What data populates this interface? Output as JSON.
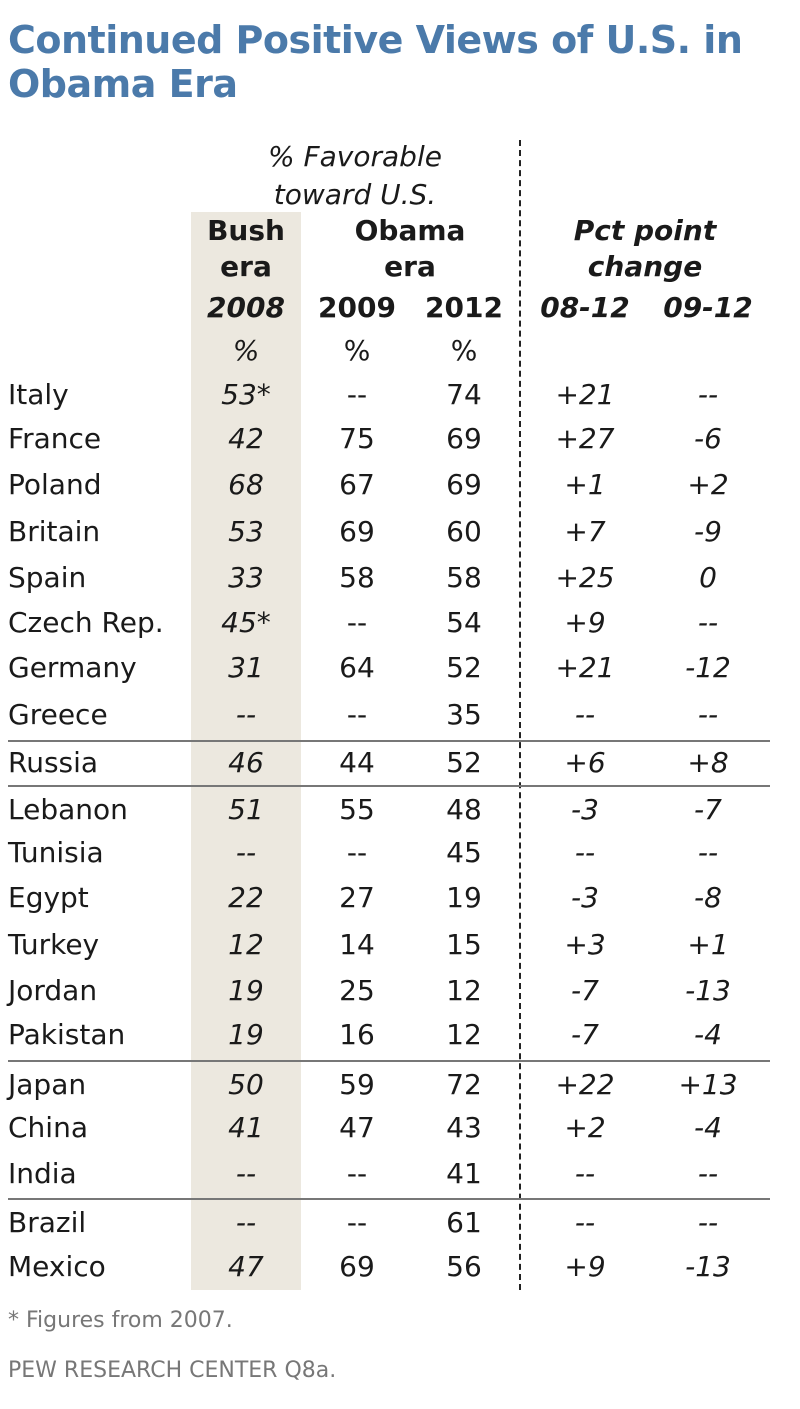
{
  "chart_data": {
    "type": "table",
    "title": "Continued Positive Views of U.S. in Obama Era",
    "header": {
      "group_label": "% Favorable toward U.S.",
      "bush_era": "Bush era",
      "obama_era": "Obama era",
      "pct_change": "Pct point change",
      "columns": [
        "2008",
        "2009",
        "2012",
        "08-12",
        "09-12"
      ],
      "units": [
        "%",
        "%",
        "%"
      ]
    },
    "rows": [
      {
        "country": "Italy",
        "values": [
          "53*",
          "--",
          "74",
          "+21",
          "--"
        ]
      },
      {
        "country": "France",
        "values": [
          "42",
          "75",
          "69",
          "+27",
          "-6"
        ]
      },
      {
        "country": "Poland",
        "values": [
          "68",
          "67",
          "69",
          "+1",
          "+2"
        ]
      },
      {
        "country": "Britain",
        "values": [
          "53",
          "69",
          "60",
          "+7",
          "-9"
        ]
      },
      {
        "country": "Spain",
        "values": [
          "33",
          "58",
          "58",
          "+25",
          "0"
        ]
      },
      {
        "country": "Czech Rep.",
        "values": [
          "45*",
          "--",
          "54",
          "+9",
          "--"
        ]
      },
      {
        "country": "Germany",
        "values": [
          "31",
          "64",
          "52",
          "+21",
          "-12"
        ]
      },
      {
        "country": "Greece",
        "values": [
          "--",
          "--",
          "35",
          "--",
          "--"
        ]
      },
      {
        "country": "Russia",
        "values": [
          "46",
          "44",
          "52",
          "+6",
          "+8"
        ]
      },
      {
        "country": "Lebanon",
        "values": [
          "51",
          "55",
          "48",
          "-3",
          "-7"
        ]
      },
      {
        "country": "Tunisia",
        "values": [
          "--",
          "--",
          "45",
          "--",
          "--"
        ]
      },
      {
        "country": "Egypt",
        "values": [
          "22",
          "27",
          "19",
          "-3",
          "-8"
        ]
      },
      {
        "country": "Turkey",
        "values": [
          "12",
          "14",
          "15",
          "+3",
          "+1"
        ]
      },
      {
        "country": "Jordan",
        "values": [
          "19",
          "25",
          "12",
          "-7",
          "-13"
        ]
      },
      {
        "country": "Pakistan",
        "values": [
          "19",
          "16",
          "12",
          "-7",
          "-4"
        ]
      },
      {
        "country": "Japan",
        "values": [
          "50",
          "59",
          "72",
          "+22",
          "+13"
        ]
      },
      {
        "country": "China",
        "values": [
          "41",
          "47",
          "43",
          "+2",
          "-4"
        ]
      },
      {
        "country": "India",
        "values": [
          "--",
          "--",
          "41",
          "--",
          "--"
        ]
      },
      {
        "country": "Brazil",
        "values": [
          "--",
          "--",
          "61",
          "--",
          "--"
        ]
      },
      {
        "country": "Mexico",
        "values": [
          "47",
          "69",
          "56",
          "+9",
          "-13"
        ]
      }
    ],
    "footnote": "* Figures from 2007.",
    "source": "PEW RESEARCH  CENTER Q8a."
  }
}
